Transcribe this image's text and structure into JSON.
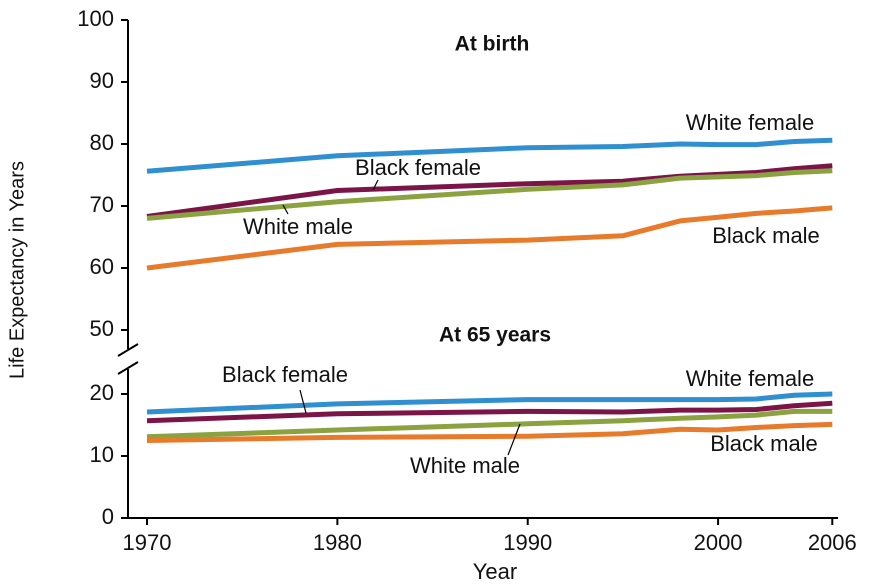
{
  "chart_data": [
    {
      "type": "line",
      "title": "At birth",
      "ylabel": "Life Expectancy in Years",
      "x": [
        1970,
        1980,
        1990,
        1995,
        1998,
        2000,
        2002,
        2004,
        2006
      ],
      "xlim": [
        1969,
        2006.3
      ],
      "ylim": [
        47,
        100
      ],
      "yticks": [
        50,
        60,
        70,
        80,
        90,
        100
      ],
      "series": [
        {
          "name": "White female",
          "color": "#2f8fd0",
          "values": [
            75.6,
            78.1,
            79.4,
            79.6,
            80.0,
            79.9,
            79.9,
            80.4,
            80.6
          ]
        },
        {
          "name": "Black female",
          "color": "#7b1548",
          "values": [
            68.3,
            72.5,
            73.6,
            74.0,
            74.8,
            75.1,
            75.4,
            76.0,
            76.5
          ]
        },
        {
          "name": "White male",
          "color": "#8ba240",
          "values": [
            68.0,
            70.7,
            72.7,
            73.4,
            74.5,
            74.7,
            74.9,
            75.4,
            75.7
          ]
        },
        {
          "name": "Black male",
          "color": "#e87a2c",
          "values": [
            60.0,
            63.8,
            64.5,
            65.2,
            67.6,
            68.2,
            68.8,
            69.2,
            69.7
          ]
        }
      ]
    },
    {
      "type": "line",
      "title": "At 65 years",
      "xlabel": "Year",
      "x": [
        1970,
        1980,
        1990,
        1995,
        1998,
        2000,
        2002,
        2004,
        2006
      ],
      "xlim": [
        1969,
        2006.3
      ],
      "xticks": [
        1970,
        1980,
        1990,
        2000,
        2006
      ],
      "ylim": [
        0,
        24
      ],
      "yticks": [
        0,
        10,
        20
      ],
      "series": [
        {
          "name": "White female",
          "color": "#2f8fd0",
          "values": [
            17.1,
            18.4,
            19.1,
            19.1,
            19.1,
            19.1,
            19.2,
            19.8,
            20.0
          ]
        },
        {
          "name": "Black female",
          "color": "#7b1548",
          "values": [
            15.7,
            16.8,
            17.2,
            17.1,
            17.4,
            17.4,
            17.5,
            18.1,
            18.5
          ]
        },
        {
          "name": "White male",
          "color": "#8ba240",
          "values": [
            13.1,
            14.2,
            15.2,
            15.7,
            16.1,
            16.3,
            16.6,
            17.2,
            17.2
          ]
        },
        {
          "name": "Black male",
          "color": "#e87a2c",
          "values": [
            12.5,
            13.0,
            13.2,
            13.6,
            14.3,
            14.2,
            14.6,
            14.9,
            15.1
          ]
        }
      ]
    }
  ]
}
